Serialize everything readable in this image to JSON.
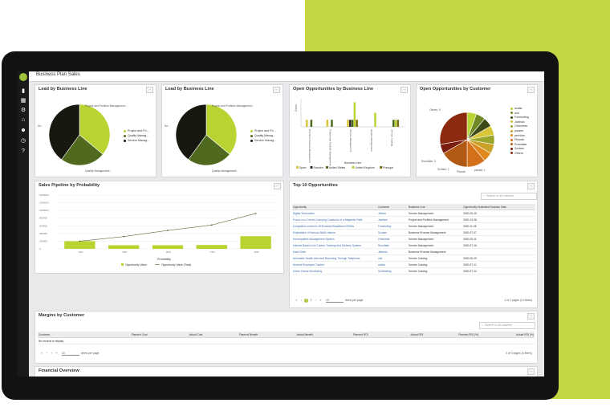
{
  "colors": {
    "accent": "#c3d641",
    "bezel": "#121212",
    "chart_lime": "#b9d331",
    "chart_green": "#4f6a1f",
    "chart_dark": "#17180f",
    "link": "#3a6fb5"
  },
  "sidebar": {
    "icons": [
      "bar-chart-icon",
      "grid-icon",
      "gear-icon",
      "bank-icon",
      "users-icon",
      "clock-icon",
      "help-icon"
    ]
  },
  "header": {
    "title": "Business Plan Sales"
  },
  "lead1": {
    "title": "Lead by Business Line",
    "legend": [
      "Project and Po...",
      "Quality Manag...",
      "Service Manag..."
    ],
    "labels": [
      "Project and Portfolio Management...",
      "Quality Management...",
      "Se..."
    ]
  },
  "lead2": {
    "title": "Lead by Business Line",
    "legend": [
      "Project and Po...",
      "Quality Manag...",
      "Service Manag..."
    ],
    "labels": [
      "Project and Portfolio Management...",
      "Quality Management...",
      "Se..."
    ]
  },
  "open_bl": {
    "title": "Open Opportunities by Business Line",
    "ylabel": "Count",
    "xlabel": "Business Line",
    "categories": [
      "Business Process Management",
      "Project and Portfolio Management",
      "Service Management",
      "Quality Management",
      "Service Catalog"
    ],
    "legend": [
      "Spain",
      "Sweden",
      "United States",
      "United Kingdom",
      "Portugal"
    ]
  },
  "open_cust": {
    "title": "Open Opportunities by Customer",
    "legend": [
      "avalia",
      "ooli",
      "Fuminoting",
      "Jabindo",
      "Ontometa",
      "parami",
      "perNum",
      "Piwoab",
      "Runofake",
      "Scoteni",
      "Others"
    ],
    "labels": [
      "Others, 5",
      "Runofake, 3",
      "Scoteni, 1",
      "parami, 1",
      "Piwoab"
    ]
  },
  "pipeline": {
    "title": "Sales Pipeline by Probability",
    "xlabel": "Probability",
    "legend": [
      "Opportunity Value",
      "Opportunity Value (Total)"
    ]
  },
  "chart_data": [
    {
      "type": "pie",
      "title": "Lead by Business Line",
      "categories": [
        "Project and Portfolio Management",
        "Quality Management",
        "Service Management"
      ],
      "values": [
        36,
        24,
        40
      ]
    },
    {
      "type": "pie",
      "title": "Lead by Business Line",
      "categories": [
        "Project and Portfolio Management",
        "Quality Management",
        "Service Management"
      ],
      "values": [
        36,
        24,
        40
      ]
    },
    {
      "type": "bar",
      "title": "Open Opportunities by Business Line",
      "xlabel": "Business Line",
      "ylabel": "Count",
      "categories": [
        "Business Process Management",
        "Project and Portfolio Management",
        "Service Management",
        "Quality Management",
        "Service Catalog"
      ],
      "ylim": [
        0,
        4
      ],
      "series": [
        {
          "name": "Spain",
          "values": [
            1,
            1,
            1,
            0,
            0
          ]
        },
        {
          "name": "Sweden",
          "values": [
            0,
            0,
            1,
            0,
            0
          ]
        },
        {
          "name": "United States",
          "values": [
            1,
            1,
            1,
            0,
            1
          ]
        },
        {
          "name": "United Kingdom",
          "values": [
            0,
            0,
            3.5,
            2,
            1
          ]
        },
        {
          "name": "Portugal",
          "values": [
            0,
            0,
            1,
            0,
            1
          ]
        }
      ]
    },
    {
      "type": "pie",
      "title": "Open Opportunities by Customer",
      "categories": [
        "avalia",
        "ooli",
        "Fuminoting",
        "Jabindo",
        "Ontometa",
        "parami",
        "perNum",
        "Piwoab",
        "Runofake",
        "Scoteni",
        "Others"
      ],
      "values": [
        1,
        1,
        1,
        1,
        1,
        1,
        1,
        2,
        3,
        1,
        5
      ]
    },
    {
      "type": "bar",
      "title": "Sales Pipeline by Probability",
      "xlabel": "Probability",
      "categories": [
        "10%",
        "25%",
        "50%",
        "75%",
        "90%"
      ],
      "ylim": [
        0,
        1400000
      ],
      "yticks": [
        "1400000",
        "1200000",
        "1000000",
        "800000",
        "600000",
        "400000",
        "200000",
        "0"
      ],
      "series": [
        {
          "name": "Opportunity Value",
          "values": [
            200000,
            95000,
            95000,
            100000,
            330000
          ]
        },
        {
          "name": "Opportunity Value (Total)",
          "values": [
            200000,
            320000,
            480000,
            620000,
            920000
          ]
        }
      ]
    }
  ],
  "top10": {
    "title": "Top 10 Opportunities",
    "search_placeholder": "Search in all columns",
    "columns": [
      "Opportunity",
      "Customer",
      "Business Line",
      "Opportunity Estimated Decision Date"
    ],
    "rows": [
      [
        "Digital Technoteks",
        "Jellium",
        "Service Management",
        "2020-09-15"
      ],
      [
        "Focus on a Current Carrying Conductor in a Magnetic Field",
        "Jumbee",
        "Project and Portfolio Management",
        "2020-10-08"
      ],
      [
        "Congestion control in ATM-based Broadband ISDNs",
        "Fuminoting",
        "Service Management",
        "2020-11-25"
      ],
      [
        "Exploitation of Narrow-Width Values",
        "Scoteni",
        "Business Process Management",
        "2020-07-07"
      ],
      [
        "Homeopathic Management System",
        "Ontometa",
        "Service Management",
        "2020-09-11"
      ],
      [
        "Internet Based Live Courier Tracking And Delivery System",
        "Runofake",
        "Service Management",
        "2020-07-26"
      ],
      [
        "Eash Suite",
        "Jabindo",
        "Business Process Management",
        ""
      ],
      [
        "Automatic Health Alert and Reporting Through Telephone",
        "ooli",
        "Service Catalog",
        "2020-06-29"
      ],
      [
        "Android Employee Tracker",
        "avalia",
        "Service Catalog",
        "2020-07-21"
      ],
      [
        "Green House Monitoring",
        "Scotmating",
        "Service Catalog",
        "2020-07-24"
      ]
    ],
    "pager": {
      "pages": [
        "1",
        "2"
      ],
      "page_size": "10",
      "per_page_label": "items per page",
      "summary": "1 of 2 pages (14 items)"
    }
  },
  "margins": {
    "title": "Margins by Customer",
    "search_placeholder": "Search in all columns",
    "columns": [
      "Customer",
      "Planned Cost",
      "Actual Cost",
      "Planned Benefit",
      "Actual Benefit",
      "Planned ROI",
      "Actual ROI",
      "Planned ROI (%)",
      "Actual ROI (%)"
    ],
    "empty": "No records to display.",
    "pager": {
      "page_size": "10",
      "per_page_label": "items per page",
      "summary": "0 of 0 pages (0 items)"
    }
  },
  "financial": {
    "title": "Financial Overview"
  }
}
